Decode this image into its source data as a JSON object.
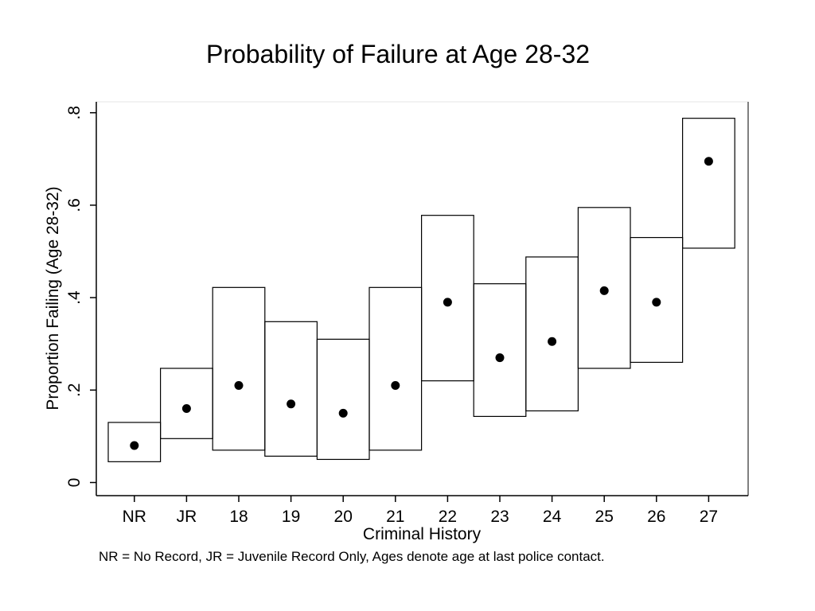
{
  "slide": {
    "title": "Probability of Failure at Age 28-32",
    "footnote": "NR = No Record, JR = Juvenile Record Only, Ages denote age at last police contact."
  },
  "chart_data": {
    "type": "box",
    "xlabel": "Criminal History",
    "ylabel": "Proportion Failing (Age 28-32)",
    "ylim": [
      -0.025,
      0.82
    ],
    "yticks": [
      0,
      0.2,
      0.4,
      0.6,
      0.8
    ],
    "ytick_labels": [
      "0",
      ".2",
      ".4",
      ".6",
      ".8"
    ],
    "categories": [
      "NR",
      "JR",
      "18",
      "19",
      "20",
      "21",
      "22",
      "23",
      "24",
      "25",
      "26",
      "27"
    ],
    "series": [
      {
        "point": [
          0.08,
          0.16,
          0.21,
          0.17,
          0.15,
          0.21,
          0.39,
          0.27,
          0.305,
          0.415,
          0.39,
          0.695
        ],
        "lower": [
          0.045,
          0.095,
          0.07,
          0.057,
          0.05,
          0.07,
          0.22,
          0.143,
          0.155,
          0.247,
          0.26,
          0.507
        ],
        "upper": [
          0.13,
          0.247,
          0.422,
          0.348,
          0.31,
          0.422,
          0.578,
          0.43,
          0.488,
          0.595,
          0.53,
          0.788
        ]
      }
    ],
    "grid": false,
    "legend": "none"
  }
}
